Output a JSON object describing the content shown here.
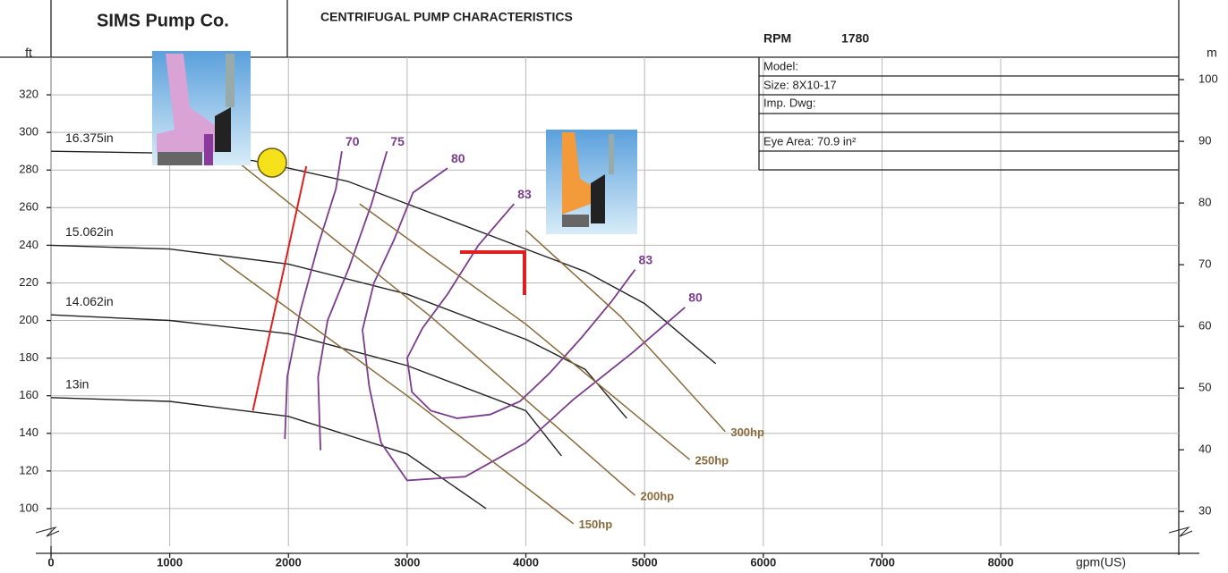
{
  "chart_data": {
    "type": "line",
    "company": "SIMS Pump Co.",
    "title": "CENTRIFUGAL PUMP CHARACTERISTICS",
    "rpm_label": "RPM",
    "rpm": 1780,
    "info_rows": [
      "Model:",
      "Size: 8X10-17",
      "Imp. Dwg:",
      "Eye Area: 70.9 in²"
    ],
    "x_label": "gpm(US)",
    "y_label": "ft",
    "y2_label": "m",
    "xlim": [
      0,
      9500
    ],
    "xticks": [
      0,
      1000,
      2000,
      3000,
      4000,
      5000,
      6000,
      7000,
      8000
    ],
    "ylim": [
      80,
      340
    ],
    "yticks": [
      100,
      120,
      140,
      160,
      180,
      200,
      220,
      240,
      260,
      280,
      300,
      320
    ],
    "y2lim": [
      24.38,
      103.63
    ],
    "y2ticks": [
      30,
      40,
      50,
      60,
      70,
      80,
      90,
      100
    ],
    "grid": true,
    "impeller_curves": [
      {
        "name": "16.375in",
        "color": "#222222",
        "x": [
          0,
          1000,
          1700,
          2000,
          2500,
          3000,
          3500,
          4000,
          4500,
          5000,
          5600
        ],
        "values": [
          290,
          289,
          285,
          281,
          274,
          262,
          250,
          238,
          226,
          209,
          177
        ]
      },
      {
        "name": "15.062in",
        "color": "#222222",
        "x": [
          0,
          1000,
          2000,
          3000,
          4000,
          4500,
          4850
        ],
        "values": [
          240,
          238,
          230,
          214,
          190,
          174,
          148
        ]
      },
      {
        "name": "14.062in",
        "color": "#222222",
        "x": [
          0,
          1000,
          2000,
          3000,
          4000,
          4300
        ],
        "values": [
          203,
          200,
          193,
          176,
          152,
          128
        ]
      },
      {
        "name": "13in",
        "color": "#222222",
        "x": [
          0,
          1000,
          2000,
          3000,
          3665
        ],
        "values": [
          159,
          157,
          149,
          129,
          100
        ]
      }
    ],
    "efficiency_curves": [
      {
        "name": "70",
        "color": "#7b3d8c",
        "x": [
          1970,
          1990,
          2100,
          2250,
          2400,
          2450
        ],
        "values": [
          137,
          170,
          205,
          240,
          270,
          290
        ]
      },
      {
        "name": "75",
        "color": "#7b3d8c",
        "x": [
          2270,
          2250,
          2330,
          2510,
          2700,
          2830
        ],
        "values": [
          131,
          170,
          200,
          228,
          262,
          290
        ]
      },
      {
        "name": "80",
        "color": "#7b3d8c",
        "x": [
          3340,
          3050,
          2890,
          2720,
          2624,
          2680,
          2780,
          3000,
          3490,
          4000,
          4400,
          4900,
          5340
        ],
        "values": [
          281,
          268,
          243,
          220,
          195,
          165,
          135,
          115,
          117,
          135,
          158,
          183,
          207
        ]
      },
      {
        "name": "83",
        "color": "#7b3d8c",
        "x": [
          3900,
          3600,
          3340,
          3130,
          3000,
          3040,
          3200,
          3420,
          3700,
          3950,
          4200,
          4470,
          4720,
          4920
        ],
        "values": [
          262,
          240,
          214,
          196,
          180,
          162,
          152,
          148,
          150,
          157,
          172,
          191,
          210,
          227
        ]
      }
    ],
    "power_curves": [
      {
        "name": "150hp",
        "color": "#8a6a3c",
        "x": [
          1420,
          3000,
          4400
        ],
        "values": [
          233,
          160,
          92
        ]
      },
      {
        "name": "200hp",
        "color": "#8a6a3c",
        "x": [
          1600,
          3200,
          4920
        ],
        "values": [
          283,
          202,
          107
        ]
      },
      {
        "name": "250hp",
        "color": "#8a6a3c",
        "x": [
          2600,
          4000,
          5380
        ],
        "values": [
          262,
          198,
          126
        ]
      },
      {
        "name": "300hp",
        "color": "#8a6a3c",
        "x": [
          4000,
          4800,
          5680
        ],
        "values": [
          248,
          202,
          141
        ]
      }
    ],
    "npsh_curve": {
      "color": "#e02020",
      "x": [
        1700,
        2150
      ],
      "values": [
        152,
        282
      ]
    }
  }
}
